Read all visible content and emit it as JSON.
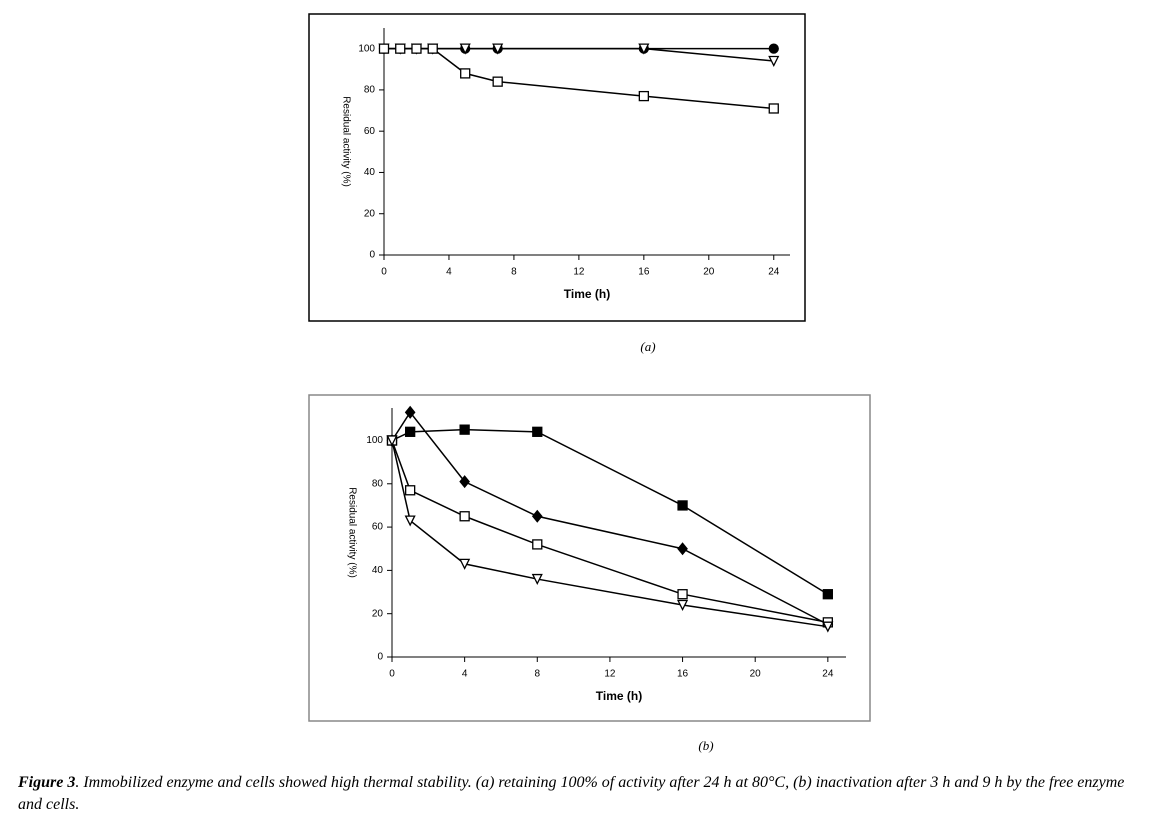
{
  "chart_data": [
    {
      "type": "line",
      "caption": "(a)",
      "x_label": "Time (h)",
      "y_label": "Residual activity (%)",
      "xlim": [
        0,
        25
      ],
      "xticks": [
        0,
        4,
        8,
        12,
        16,
        20,
        24
      ],
      "ylim": [
        0,
        110
      ],
      "yticks": [
        0,
        20,
        40,
        60,
        80,
        100
      ],
      "grid": false,
      "x": [
        0,
        1,
        2,
        3,
        5,
        7,
        16,
        24
      ],
      "series": [
        {
          "color": "#000000",
          "marker": "circle-filled",
          "values": [
            100,
            100,
            100,
            100,
            100,
            100,
            100,
            100
          ]
        },
        {
          "color": "#000000",
          "marker": "triangle-open",
          "values": [
            100,
            100,
            100,
            100,
            100,
            100,
            100,
            94
          ]
        },
        {
          "color": "#000000",
          "marker": "square-open",
          "values": [
            100,
            100,
            100,
            100,
            88,
            84,
            77,
            71
          ]
        }
      ]
    },
    {
      "type": "line",
      "caption": "(b)",
      "x_label": "Time (h)",
      "y_label": "Residual activity (%)",
      "xlim": [
        0,
        25
      ],
      "xticks": [
        0,
        4,
        8,
        12,
        16,
        20,
        24
      ],
      "ylim": [
        0,
        115
      ],
      "yticks": [
        0,
        20,
        40,
        60,
        80,
        100
      ],
      "grid": false,
      "x": [
        0,
        1,
        4,
        8,
        16,
        24
      ],
      "series": [
        {
          "color": "#000000",
          "marker": "square-filled",
          "values": [
            100,
            104,
            105,
            104,
            70,
            29
          ]
        },
        {
          "color": "#000000",
          "marker": "diamond-filled",
          "values": [
            100,
            113,
            81,
            65,
            50,
            15
          ]
        },
        {
          "color": "#000000",
          "marker": "square-open",
          "values": [
            100,
            77,
            65,
            52,
            29,
            16
          ]
        },
        {
          "color": "#000000",
          "marker": "triangle-open",
          "values": [
            100,
            63,
            43,
            36,
            24,
            14
          ]
        }
      ]
    }
  ],
  "caption": {
    "label": "Figure 3",
    "text": ". Immobilized enzyme and cells showed high thermal stability. (a) retaining 100% of activity after 24 h at 80°C, (b) inactivation after 3 h and 9 h by the free enzyme and cells."
  }
}
